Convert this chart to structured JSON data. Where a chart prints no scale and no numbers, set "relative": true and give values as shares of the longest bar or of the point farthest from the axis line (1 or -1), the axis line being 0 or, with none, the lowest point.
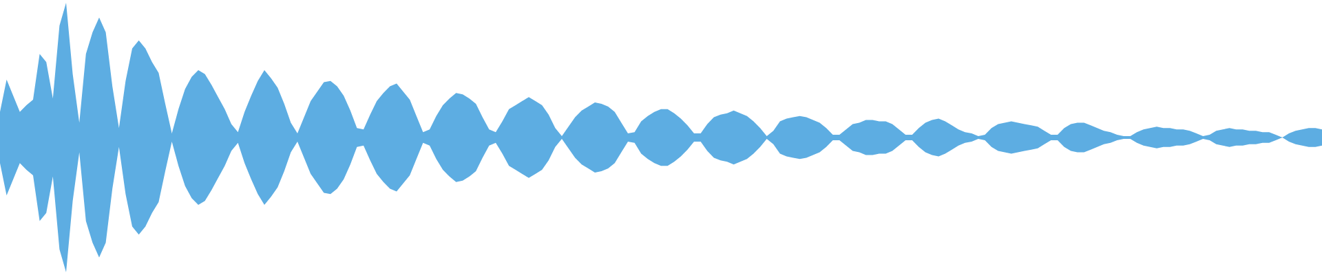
{
  "chart_data": {
    "type": "area",
    "relative": true,
    "categories": [
      null,
      null,
      null,
      null,
      null,
      null,
      null,
      null,
      null,
      null,
      null,
      null,
      null,
      null,
      null,
      null,
      null,
      null,
      null,
      null,
      null,
      null,
      null,
      null,
      null,
      null,
      null,
      null,
      null,
      null,
      null,
      null,
      null,
      null,
      null,
      null,
      null,
      null,
      null,
      null,
      null,
      null,
      null,
      null,
      null,
      null,
      null,
      null,
      null,
      null,
      null,
      null,
      null,
      null,
      null,
      null,
      null,
      null,
      null,
      null,
      null,
      null,
      null,
      null,
      null,
      null,
      null,
      null,
      null,
      null,
      null,
      null,
      null,
      null,
      null,
      null,
      null,
      null,
      null,
      null,
      null,
      null,
      null,
      null,
      null,
      null,
      null,
      null,
      null,
      null,
      null,
      null,
      null,
      null,
      null,
      null,
      null,
      null,
      null,
      null,
      null,
      null,
      null,
      null,
      null,
      null,
      null,
      null,
      null,
      null,
      null,
      null,
      null,
      null,
      null,
      null,
      null,
      null,
      null,
      null,
      null,
      null,
      null,
      null,
      null,
      null,
      null,
      null,
      null,
      null,
      null,
      null,
      null,
      null,
      null,
      null,
      null,
      null,
      null,
      null,
      null,
      null,
      null,
      null,
      null,
      null,
      null,
      null,
      null,
      null,
      null,
      null,
      null,
      null,
      null,
      null,
      null,
      null,
      null,
      null,
      null,
      null,
      null,
      null,
      null,
      null,
      null,
      null,
      null,
      null,
      null,
      null,
      null,
      null,
      null,
      null,
      null,
      null,
      null,
      null,
      null,
      null,
      null,
      null,
      null,
      null,
      null,
      null,
      null,
      null,
      null,
      null,
      null,
      null,
      null,
      null,
      null,
      null,
      null,
      null,
      null
    ],
    "series": [
      {
        "color": "#5dade2",
        "values": [
          0.19,
          0.43,
          0.31,
          0.19,
          0.24,
          0.28,
          0.62,
          0.56,
          0.29,
          0.83,
          1,
          0.47,
          0.11,
          0.62,
          0.78,
          0.89,
          0.78,
          0.38,
          0.07,
          0.42,
          0.66,
          0.72,
          0.66,
          0.56,
          0.48,
          0.25,
          0.03,
          0.21,
          0.36,
          0.45,
          0.5,
          0.47,
          0.39,
          0.3,
          0.21,
          0.1,
          0.04,
          0.19,
          0.31,
          0.42,
          0.5,
          0.44,
          0.37,
          0.25,
          0.11,
          0.03,
          0.15,
          0.27,
          0.34,
          0.41,
          0.42,
          0.38,
          0.31,
          0.2,
          0.07,
          0.06,
          0.17,
          0.27,
          0.33,
          0.38,
          0.4,
          0.34,
          0.28,
          0.16,
          0.04,
          0.06,
          0.16,
          0.24,
          0.29,
          0.33,
          0.32,
          0.29,
          0.25,
          0.15,
          0.06,
          0.04,
          0.12,
          0.21,
          0.24,
          0.27,
          0.3,
          0.27,
          0.24,
          0.17,
          0.07,
          0.01,
          0.08,
          0.15,
          0.2,
          0.23,
          0.26,
          0.25,
          0.23,
          0.19,
          0.11,
          0.03,
          0.04,
          0.12,
          0.16,
          0.19,
          0.21,
          0.21,
          0.18,
          0.14,
          0.09,
          0.03,
          0.03,
          0.1,
          0.15,
          0.17,
          0.18,
          0.2,
          0.18,
          0.16,
          0.12,
          0.07,
          0.01,
          0.05,
          0.12,
          0.14,
          0.15,
          0.16,
          0.15,
          0.13,
          0.11,
          0.07,
          0.02,
          0.02,
          0.06,
          0.1,
          0.11,
          0.13,
          0.13,
          0.12,
          0.12,
          0.1,
          0.06,
          0.02,
          0.02,
          0.07,
          0.11,
          0.13,
          0.14,
          0.12,
          0.09,
          0.06,
          0.04,
          0.03,
          0.01,
          0.02,
          0.07,
          0.1,
          0.11,
          0.12,
          0.11,
          0.1,
          0.09,
          0.08,
          0.05,
          0.02,
          0.02,
          0.07,
          0.1,
          0.11,
          0.11,
          0.09,
          0.07,
          0.05,
          0.04,
          0.02,
          0.01,
          0.01,
          0.04,
          0.06,
          0.07,
          0.08,
          0.07,
          0.07,
          0.06,
          0.06,
          0.05,
          0.03,
          0.01,
          0.02,
          0.05,
          0.06,
          0.07,
          0.06,
          0.06,
          0.05,
          0.05,
          0.04,
          0.04,
          0.02,
          0,
          0.03,
          0.05,
          0.06,
          0.07,
          0.07,
          0.06
        ]
      },
      {
        "color": "#5dade2",
        "values": [
          -0.19,
          -0.43,
          -0.31,
          -0.19,
          -0.24,
          -0.28,
          -0.62,
          -0.56,
          -0.29,
          -0.83,
          -1,
          -0.47,
          -0.11,
          -0.62,
          -0.78,
          -0.89,
          -0.78,
          -0.38,
          -0.07,
          -0.42,
          -0.66,
          -0.72,
          -0.66,
          -0.56,
          -0.48,
          -0.25,
          -0.03,
          -0.21,
          -0.36,
          -0.45,
          -0.5,
          -0.47,
          -0.39,
          -0.3,
          -0.21,
          -0.1,
          -0.04,
          -0.19,
          -0.31,
          -0.42,
          -0.5,
          -0.44,
          -0.37,
          -0.25,
          -0.11,
          -0.03,
          -0.15,
          -0.27,
          -0.34,
          -0.41,
          -0.42,
          -0.38,
          -0.31,
          -0.2,
          -0.07,
          -0.06,
          -0.17,
          -0.27,
          -0.33,
          -0.38,
          -0.4,
          -0.34,
          -0.28,
          -0.16,
          -0.04,
          -0.06,
          -0.16,
          -0.24,
          -0.29,
          -0.33,
          -0.32,
          -0.29,
          -0.25,
          -0.15,
          -0.06,
          -0.04,
          -0.12,
          -0.21,
          -0.24,
          -0.27,
          -0.3,
          -0.27,
          -0.24,
          -0.17,
          -0.07,
          -0.01,
          -0.08,
          -0.15,
          -0.2,
          -0.23,
          -0.26,
          -0.25,
          -0.23,
          -0.19,
          -0.11,
          -0.03,
          -0.04,
          -0.12,
          -0.16,
          -0.19,
          -0.21,
          -0.21,
          -0.18,
          -0.14,
          -0.09,
          -0.03,
          -0.03,
          -0.1,
          -0.15,
          -0.17,
          -0.18,
          -0.2,
          -0.18,
          -0.16,
          -0.12,
          -0.07,
          -0.01,
          -0.05,
          -0.12,
          -0.14,
          -0.15,
          -0.16,
          -0.15,
          -0.13,
          -0.11,
          -0.07,
          -0.02,
          -0.02,
          -0.06,
          -0.1,
          -0.11,
          -0.13,
          -0.13,
          -0.12,
          -0.12,
          -0.1,
          -0.06,
          -0.02,
          -0.02,
          -0.07,
          -0.11,
          -0.13,
          -0.14,
          -0.12,
          -0.09,
          -0.06,
          -0.04,
          -0.03,
          -0.01,
          -0.02,
          -0.07,
          -0.1,
          -0.11,
          -0.12,
          -0.11,
          -0.1,
          -0.09,
          -0.08,
          -0.05,
          -0.02,
          -0.02,
          -0.07,
          -0.1,
          -0.11,
          -0.11,
          -0.09,
          -0.07,
          -0.05,
          -0.04,
          -0.02,
          -0.01,
          -0.01,
          -0.04,
          -0.06,
          -0.07,
          -0.08,
          -0.07,
          -0.07,
          -0.06,
          -0.06,
          -0.05,
          -0.03,
          -0.01,
          -0.02,
          -0.05,
          -0.06,
          -0.07,
          -0.06,
          -0.06,
          -0.05,
          -0.05,
          -0.04,
          -0.04,
          -0.02,
          0,
          -0.03,
          -0.05,
          -0.06,
          -0.07,
          -0.07,
          -0.06
        ]
      }
    ]
  }
}
